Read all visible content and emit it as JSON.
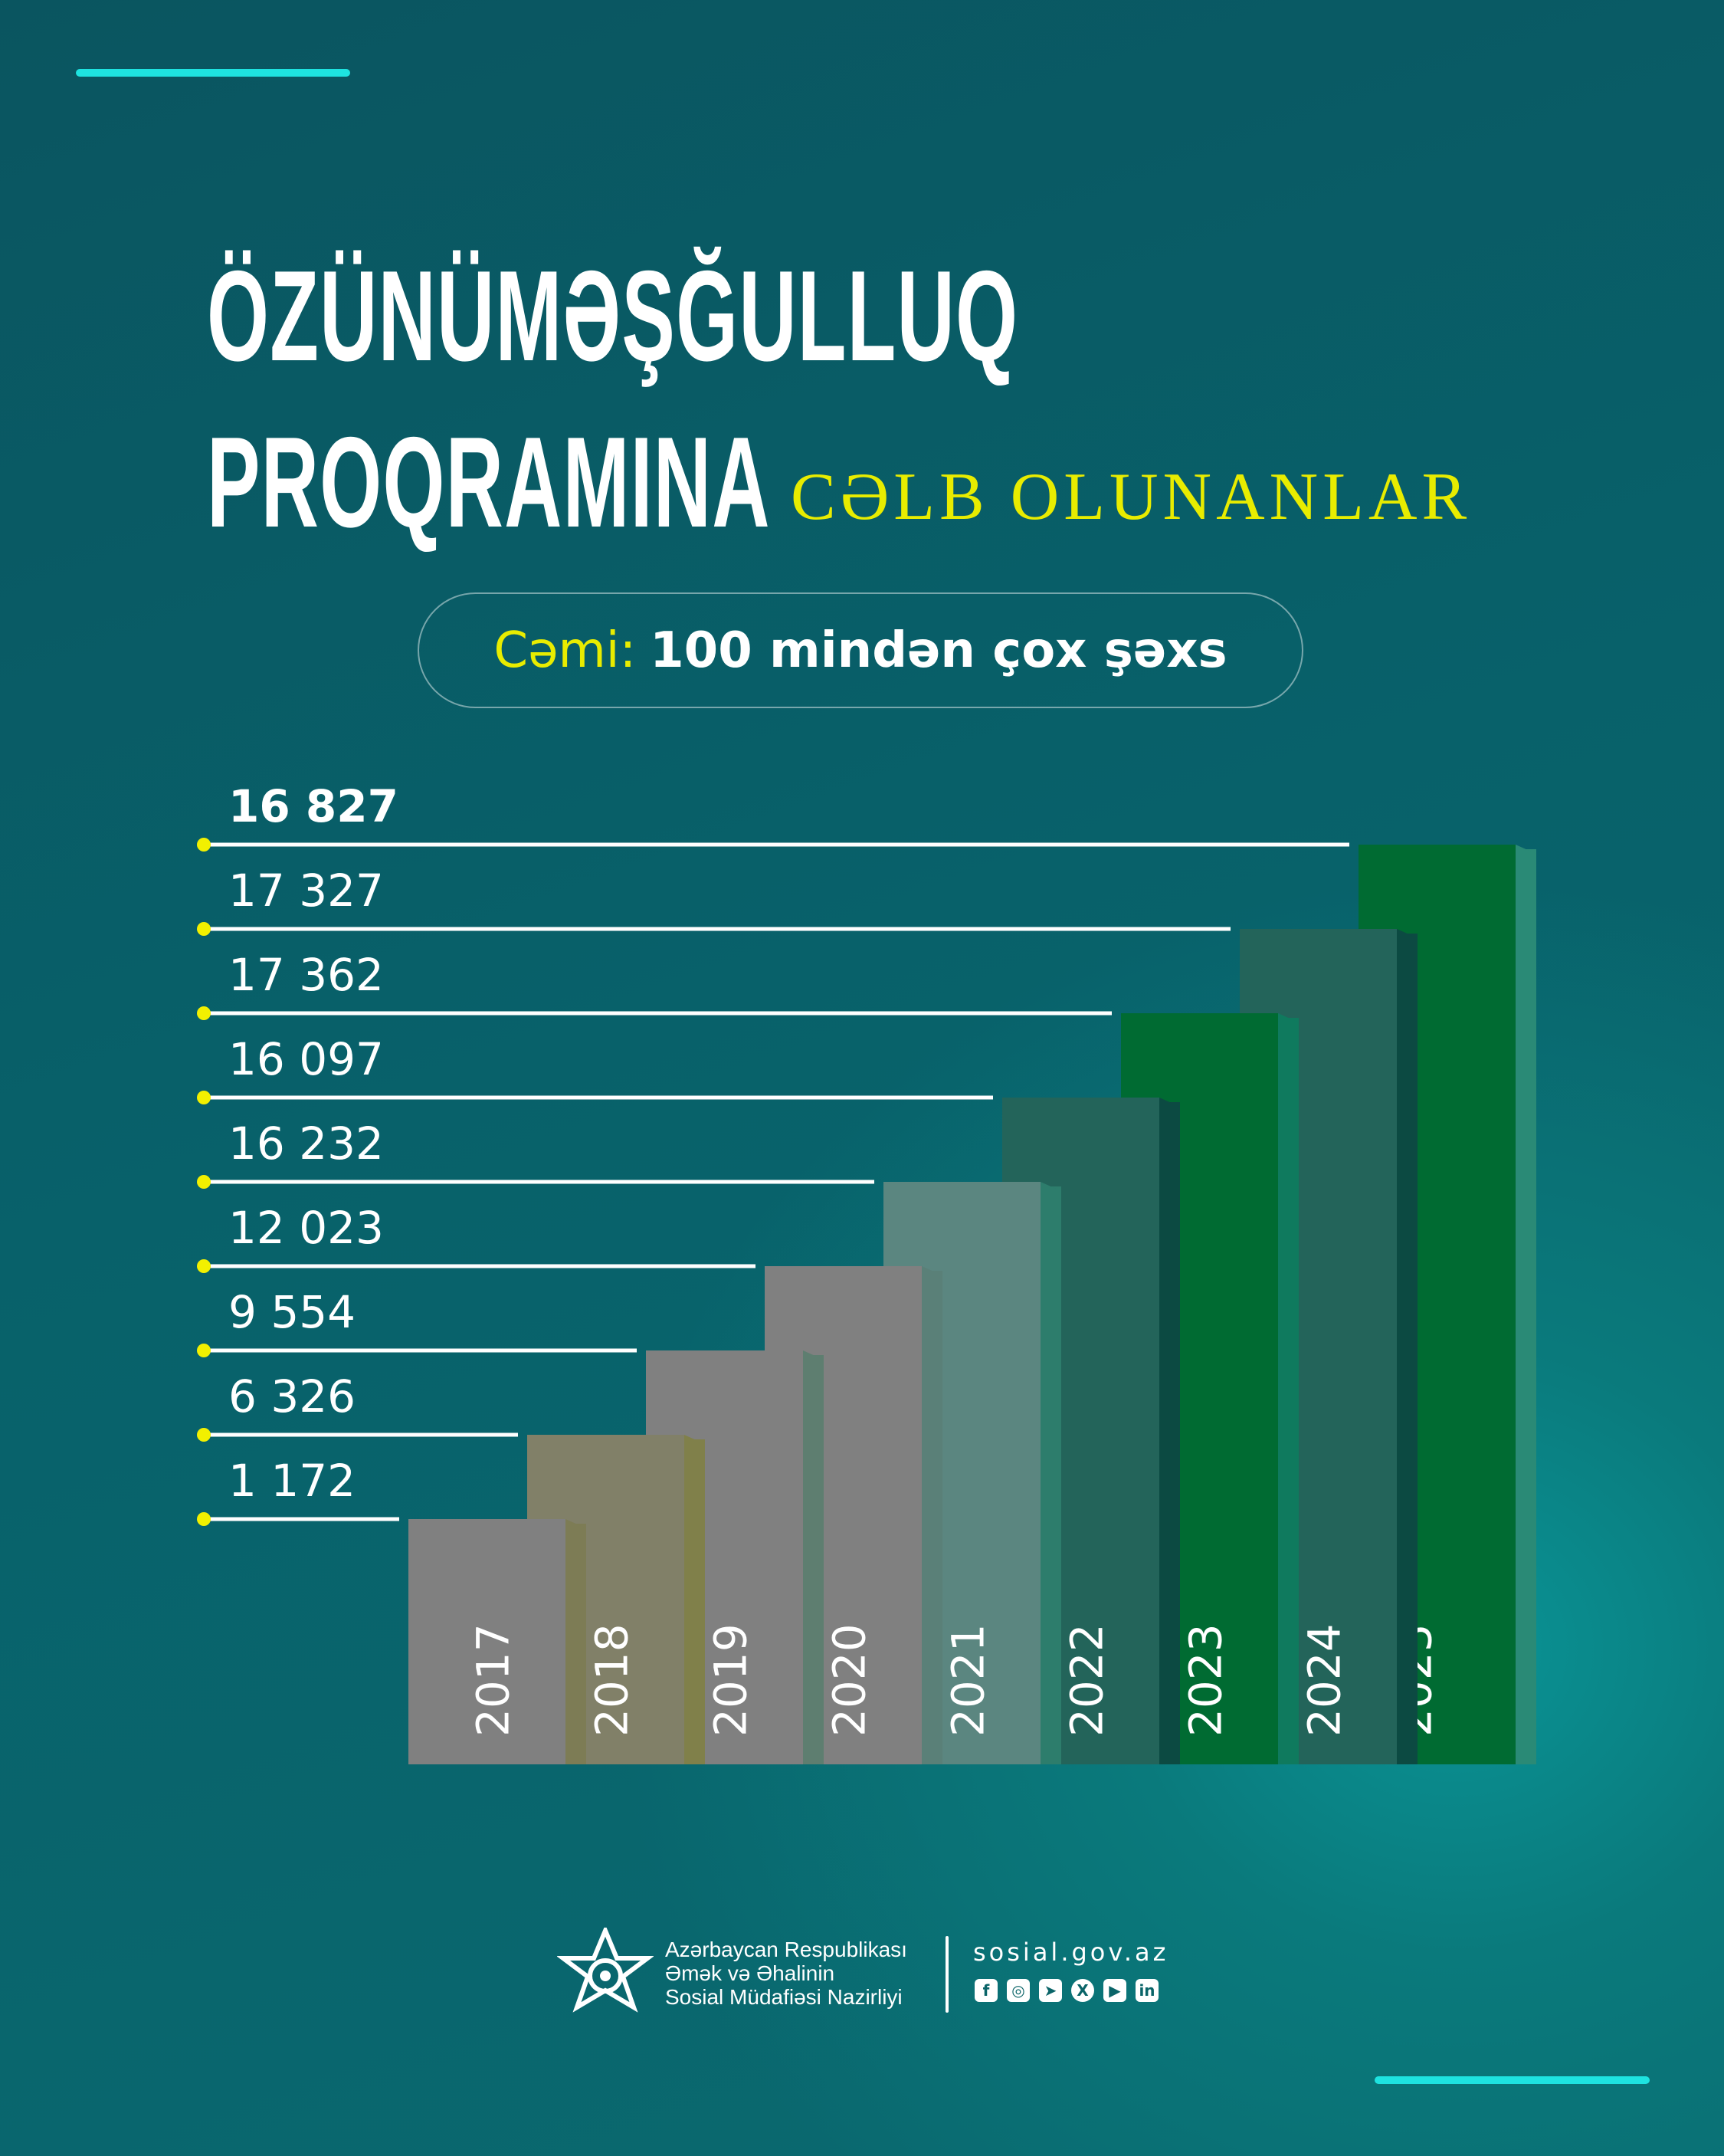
{
  "title": {
    "line1": "ÖZÜNÜMƏŞĞULLUQ",
    "line2": "PROQRAMINA",
    "subtitle": "CƏLB OLUNANLAR"
  },
  "total": {
    "label": "Cəmi:",
    "value": "100 mindən çox şəxs"
  },
  "chart_data": {
    "type": "bar",
    "categories": [
      "2017",
      "2018",
      "2019",
      "2020",
      "2021",
      "2022",
      "2023",
      "2024",
      "2025"
    ],
    "values": [
      1172,
      6326,
      9554,
      12023,
      16232,
      16097,
      17362,
      17327,
      16827
    ],
    "value_labels": [
      "1 172",
      "6 326",
      "9 554",
      "12 023",
      "16 232",
      "16 097",
      "17 362",
      "17 327",
      "16 827"
    ],
    "bar_colors": [
      "#808080",
      "#818068",
      "#808080",
      "#808080",
      "#5b8680",
      "#23645a",
      "#006b32",
      "#23645a",
      "#006b32"
    ],
    "side_colors": [
      "#7d7c55",
      "#80804a",
      "#5e7e70",
      "#5a8078",
      "#2d7d6c",
      "#0c4a42",
      "#0f7a5e",
      "#0c4a42",
      "#2a8a76"
    ],
    "marker_color": "#f2f000",
    "layout": "staircase"
  },
  "footer": {
    "org_line1": "Azərbaycan Respublikası",
    "org_line2": "Əmək və Əhalinin",
    "org_line3": "Sosial Müdafiəsi Nazirliyi",
    "website": "sosial.gov.az",
    "socials": [
      {
        "icon": "facebook-icon",
        "glyph": "f"
      },
      {
        "icon": "instagram-icon",
        "glyph": "◎"
      },
      {
        "icon": "telegram-icon",
        "glyph": "➤"
      },
      {
        "icon": "x-icon",
        "glyph": "X"
      },
      {
        "icon": "youtube-icon",
        "glyph": "▶"
      },
      {
        "icon": "linkedin-icon",
        "glyph": "in"
      }
    ]
  },
  "colors": {
    "accent_line": "#1ee3e0",
    "highlight": "#e8ec00",
    "background": "#0a5c63"
  }
}
